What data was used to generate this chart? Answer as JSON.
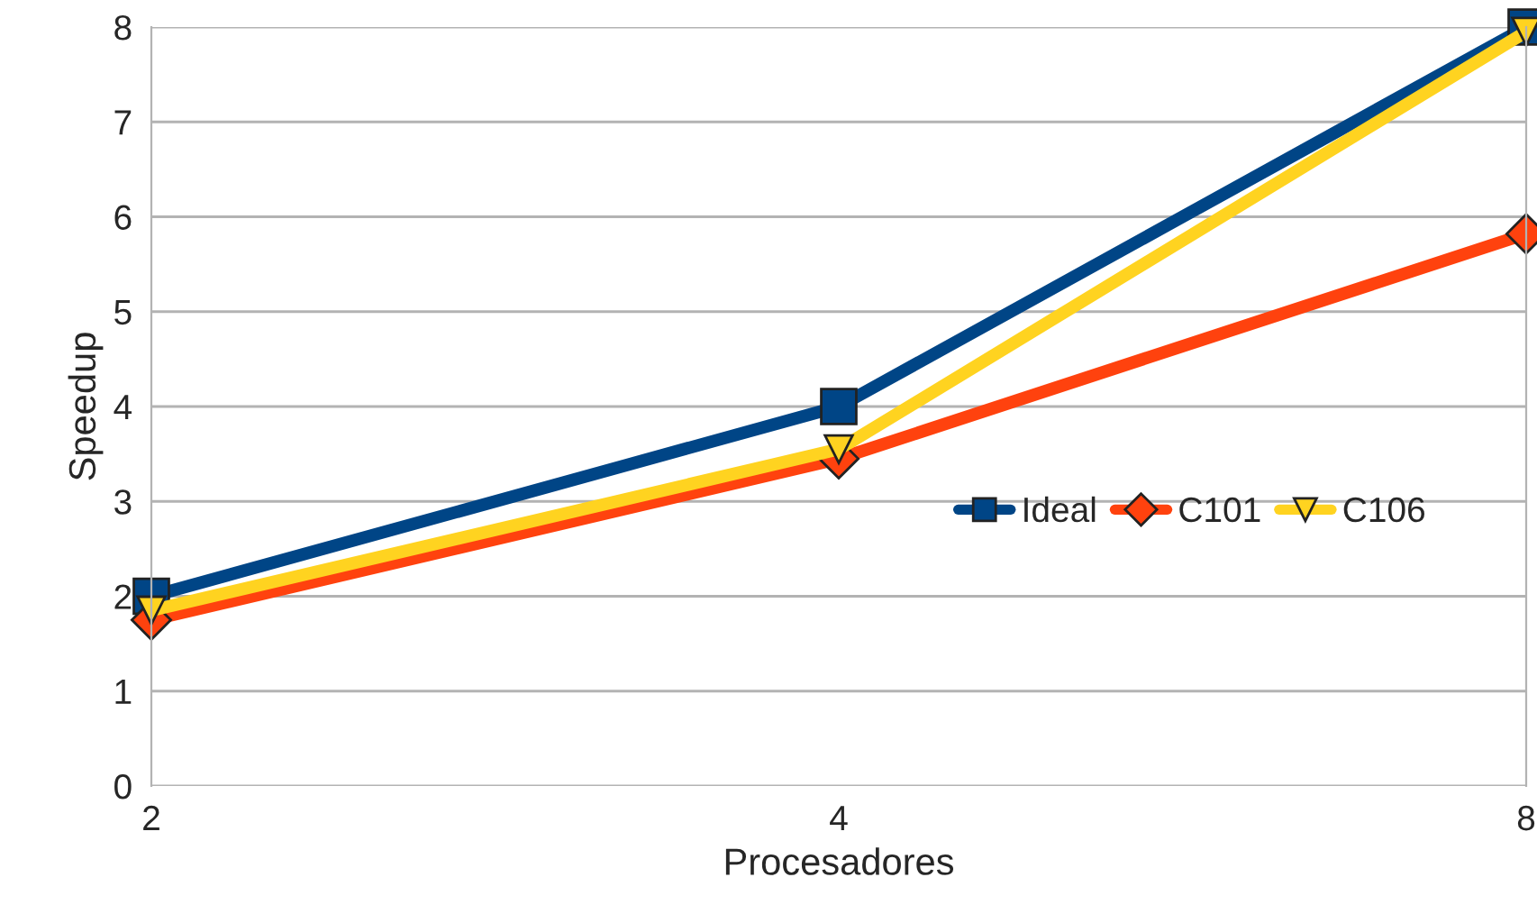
{
  "chart_data": {
    "type": "line",
    "xlabel": "Procesadores",
    "ylabel": "Speedup",
    "x": [
      2,
      4,
      8
    ],
    "series": [
      {
        "name": "Ideal",
        "color": "#004586",
        "marker": "square",
        "values": [
          2,
          4,
          8
        ]
      },
      {
        "name": "C101",
        "color": "#ff420e",
        "marker": "diamond",
        "values": [
          1.75,
          3.45,
          5.82
        ]
      },
      {
        "name": "C106",
        "color": "#ffd320",
        "marker": "triangle",
        "values": [
          1.85,
          3.55,
          7.95
        ]
      }
    ],
    "log": "x",
    "xlim": [
      2,
      8
    ],
    "xticks": [
      2,
      4,
      8
    ],
    "ylim": [
      0,
      8
    ],
    "yticks": [
      0,
      1,
      2,
      3,
      4,
      5,
      6,
      7,
      8
    ],
    "grid": "y",
    "legend": "right",
    "line_style": "solid"
  }
}
